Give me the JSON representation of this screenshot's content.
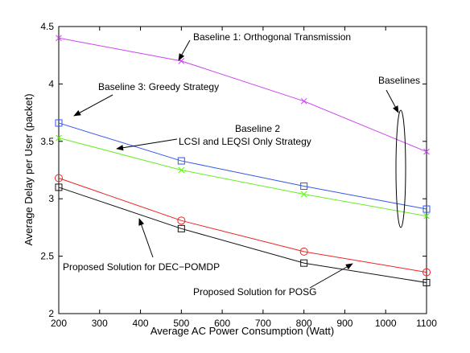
{
  "chart_data": {
    "type": "line",
    "xlabel": "Average AC Power Consumption (Watt)",
    "ylabel": "Average Delay per User (packet)",
    "xlim": [
      200,
      1100
    ],
    "ylim": [
      2,
      4.5
    ],
    "xticks": [
      200,
      300,
      400,
      500,
      600,
      700,
      800,
      900,
      1000,
      1100
    ],
    "yticks": [
      2,
      2.5,
      3,
      3.5,
      4,
      4.5
    ],
    "grid": false,
    "legend": "none",
    "x": [
      200,
      500,
      800,
      1100
    ],
    "series": [
      {
        "key": "baseline1",
        "color": "#cc44ee",
        "marker": "x",
        "values": [
          4.4,
          4.2,
          3.85,
          3.41
        ]
      },
      {
        "key": "baseline3",
        "color": "#3355ee",
        "marker": "square",
        "values": [
          3.66,
          3.33,
          3.11,
          2.91
        ]
      },
      {
        "key": "baseline2",
        "color": "#66ee22",
        "marker": "x",
        "values": [
          3.53,
          3.25,
          3.04,
          2.85
        ]
      },
      {
        "key": "posg",
        "color": "#ee2222",
        "marker": "circle",
        "values": [
          3.18,
          2.81,
          2.54,
          2.36
        ]
      },
      {
        "key": "decpomdp",
        "color": "#111111",
        "marker": "square",
        "values": [
          3.1,
          2.74,
          2.44,
          2.27
        ]
      }
    ],
    "annotations": {
      "baseline1": "Baseline 1: Orthogonal Transmission",
      "baseline3": "Baseline 3: Greedy Strategy",
      "baseline2_line1": "Baseline 2",
      "baseline2_line2": "LCSI and LEQSI Only Strategy",
      "baselines": "Baselines",
      "decpomdp": "Proposed Solution for DEC−POMDP",
      "posg": "Proposed Solution for POSG"
    }
  }
}
